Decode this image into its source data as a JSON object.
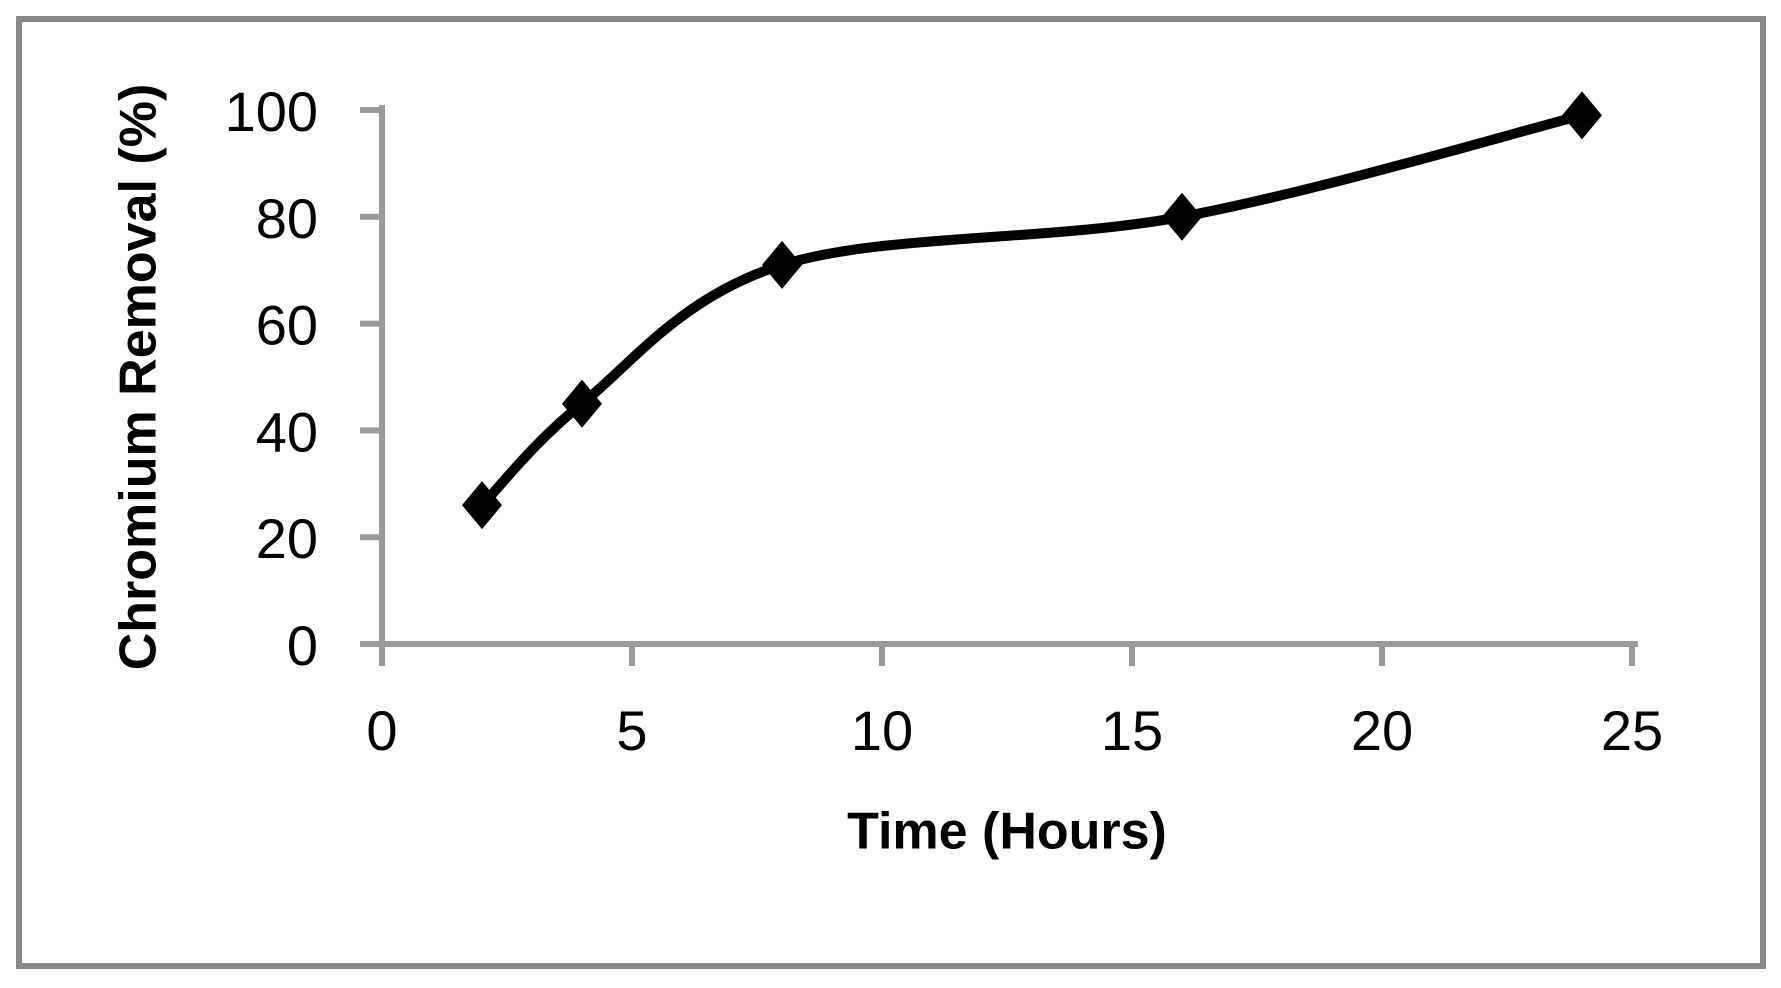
{
  "chart_data": {
    "type": "line",
    "title": "",
    "xlabel": "Time (Hours)",
    "ylabel": "Chromium Removal (%)",
    "series": [
      {
        "name": "Chromium Removal",
        "x": [
          2,
          4,
          8,
          16,
          24
        ],
        "y": [
          26,
          45,
          71,
          80,
          99
        ],
        "marker": "diamond",
        "color": "#000000",
        "smooth": true
      }
    ],
    "xlim": [
      0,
      25
    ],
    "ylim": [
      0,
      100
    ],
    "x_ticks": [
      0,
      5,
      10,
      15,
      20,
      25
    ],
    "y_ticks": [
      0,
      20,
      40,
      60,
      80,
      100
    ],
    "grid": false,
    "legend": false,
    "axis_color": "#9A9A9A",
    "frame_color": "#898989",
    "text_color": "#000000",
    "background_color": "#FFFFFF"
  }
}
